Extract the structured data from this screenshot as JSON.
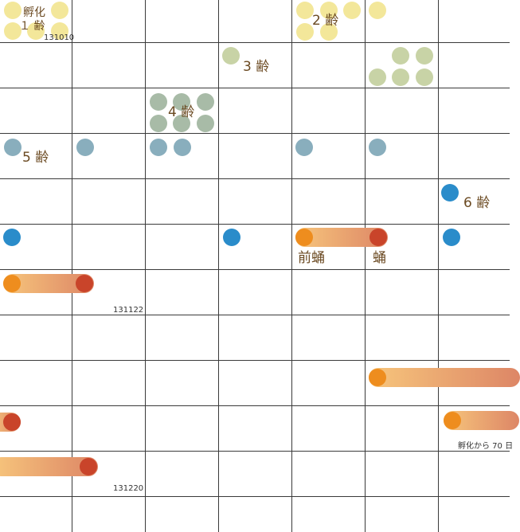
{
  "colors": {
    "instar_1": "#f3e79a",
    "instar_2": "#f3e79a",
    "instar_3": "#c8d3a6",
    "instar_4": "#a8bba7",
    "instar_5": "#89aebd",
    "instar_6": "#2a8cca",
    "prepupa": "#ee8d1e",
    "pupa": "#c9442a",
    "bar_start": "#f7c67c",
    "bar_end": "#dd8666",
    "grid": "#3a3a3a",
    "label": "#6b4a22"
  },
  "labels": {
    "hatch": "孵化",
    "instar_1": "１ 齢",
    "instar_2": "2 齢",
    "instar_3": "3 齢",
    "instar_4": "4 齢",
    "instar_5": "5 齢",
    "instar_6": "6 齢",
    "prepupa": "前蛹",
    "pupa": "蛹",
    "days_from_hatch": "孵化から 70 日"
  },
  "dates": [
    "131010",
    "131122",
    "131220"
  ]
}
